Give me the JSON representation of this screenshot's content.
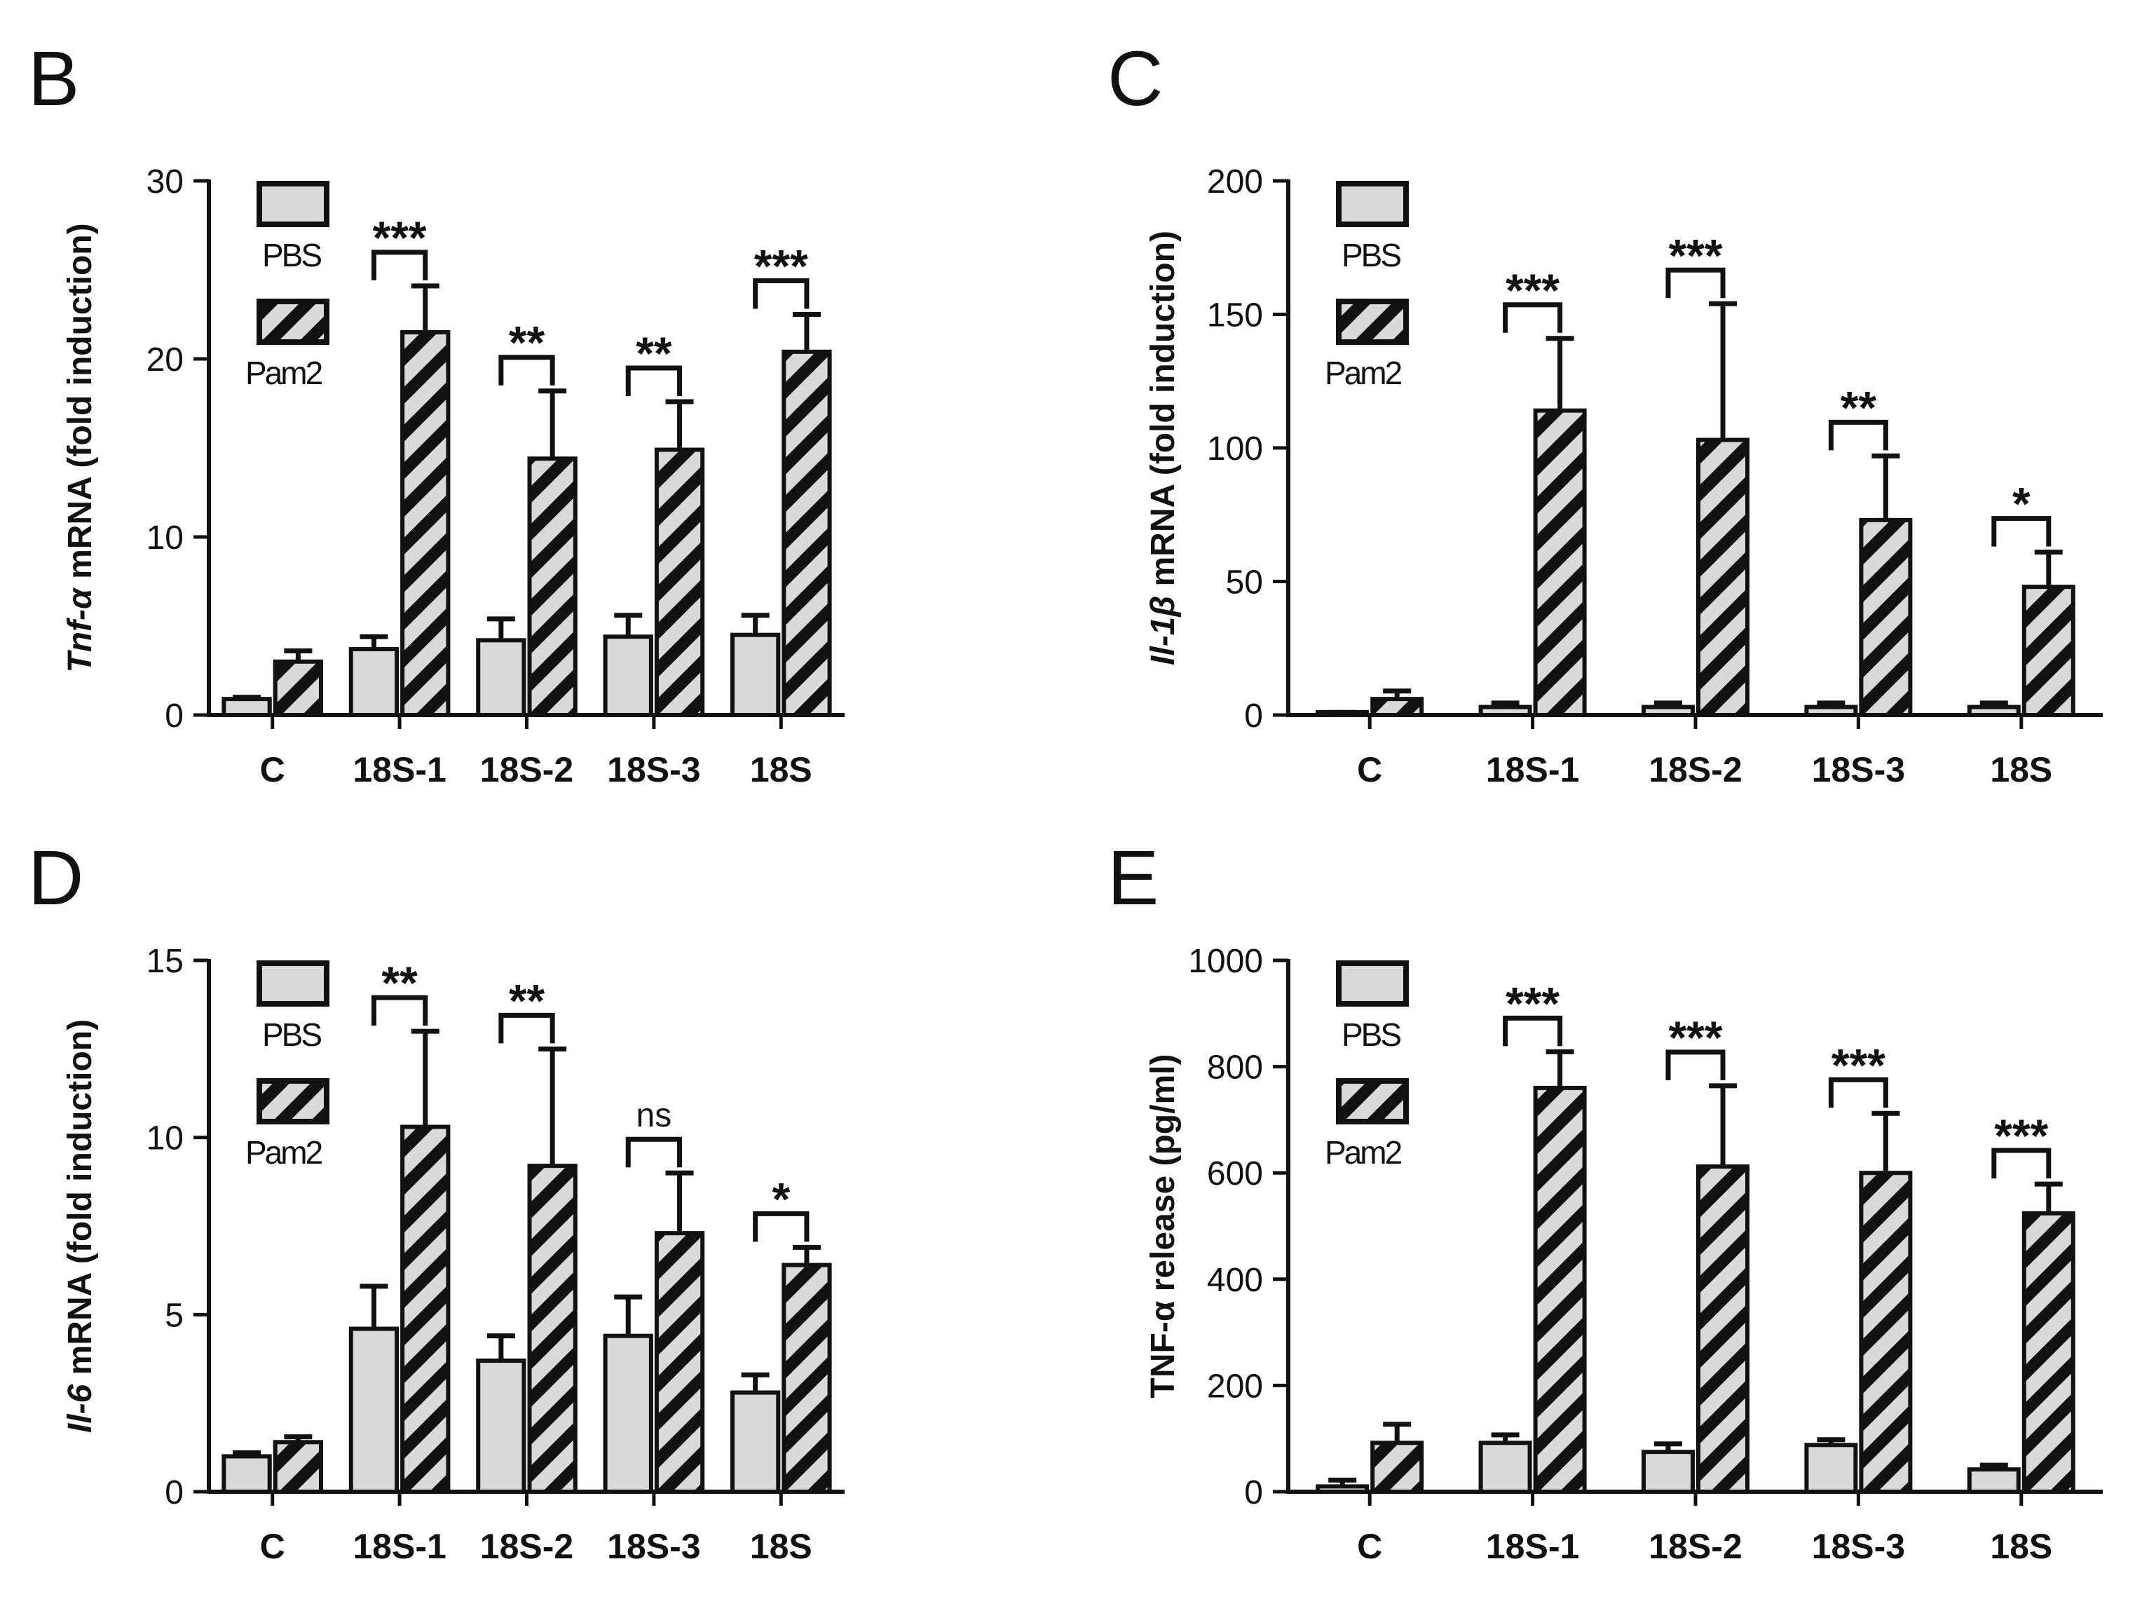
{
  "colors": {
    "bar_fill": "#d9d9d9",
    "stroke": "#111111"
  },
  "legend": {
    "items": [
      {
        "label": "PBS",
        "pattern": "solid"
      },
      {
        "label": "Pam2",
        "pattern": "hatched"
      }
    ]
  },
  "chart_data": [
    {
      "panel": "B",
      "type": "bar",
      "title": "",
      "ylabel_italic": "Tnf-α",
      "ylabel_rest": " mRNA (fold induction)",
      "xlabel": "",
      "categories": [
        "C",
        "18S-1",
        "18S-2",
        "18S-3",
        "18S"
      ],
      "ylim": [
        0,
        30
      ],
      "yticks": [
        0,
        10,
        20,
        30
      ],
      "series": [
        {
          "name": "PBS",
          "values": [
            0.9,
            3.7,
            4.2,
            4.4,
            4.5
          ],
          "errors": [
            0.1,
            0.7,
            1.2,
            1.2,
            1.1
          ]
        },
        {
          "name": "Pam2",
          "values": [
            3.0,
            21.5,
            14.4,
            14.9,
            20.4
          ],
          "errors": [
            0.6,
            2.6,
            3.8,
            2.7,
            2.1
          ]
        }
      ],
      "significance": [
        "",
        "***",
        "**",
        "**",
        "***"
      ]
    },
    {
      "panel": "C",
      "type": "bar",
      "title": "",
      "ylabel_italic": "Il-1β",
      "ylabel_rest": " mRNA (fold induction)",
      "xlabel": "",
      "categories": [
        "C",
        "18S-1",
        "18S-2",
        "18S-3",
        "18S"
      ],
      "ylim": [
        0,
        200
      ],
      "yticks": [
        0,
        50,
        100,
        150,
        200
      ],
      "series": [
        {
          "name": "PBS",
          "values": [
            0.5,
            3,
            3,
            3,
            3
          ],
          "errors": [
            0.5,
            1.5,
            1.5,
            1.5,
            1.5
          ]
        },
        {
          "name": "Pam2",
          "values": [
            6,
            114,
            103,
            73,
            48
          ],
          "errors": [
            3,
            27,
            51,
            24,
            13
          ]
        }
      ],
      "significance": [
        "",
        "***",
        "***",
        "**",
        "*"
      ]
    },
    {
      "panel": "D",
      "type": "bar",
      "title": "",
      "ylabel_italic": "Il-6",
      "ylabel_rest": " mRNA (fold induction)",
      "xlabel": "",
      "categories": [
        "C",
        "18S-1",
        "18S-2",
        "18S-3",
        "18S"
      ],
      "ylim": [
        0,
        15
      ],
      "yticks": [
        0,
        5,
        10,
        15
      ],
      "series": [
        {
          "name": "PBS",
          "values": [
            1.0,
            4.6,
            3.7,
            4.4,
            2.8
          ],
          "errors": [
            0.1,
            1.2,
            0.7,
            1.1,
            0.5
          ]
        },
        {
          "name": "Pam2",
          "values": [
            1.4,
            10.3,
            9.2,
            7.3,
            6.4
          ],
          "errors": [
            0.15,
            2.7,
            3.3,
            1.7,
            0.5
          ]
        }
      ],
      "significance": [
        "",
        "**",
        "**",
        "ns",
        "*"
      ]
    },
    {
      "panel": "E",
      "type": "bar",
      "title": "",
      "ylabel_italic": "",
      "ylabel_rest": "TNF-α release (pg/ml)",
      "xlabel": "",
      "categories": [
        "C",
        "18S-1",
        "18S-2",
        "18S-3",
        "18S"
      ],
      "ylim": [
        0,
        1000
      ],
      "yticks": [
        0,
        200,
        400,
        600,
        800,
        1000
      ],
      "series": [
        {
          "name": "PBS",
          "values": [
            10,
            92,
            75,
            88,
            42
          ],
          "errors": [
            12,
            15,
            15,
            10,
            8
          ]
        },
        {
          "name": "Pam2",
          "values": [
            92,
            760,
            612,
            600,
            524
          ],
          "errors": [
            35,
            68,
            152,
            112,
            55
          ]
        }
      ],
      "significance": [
        "",
        "***",
        "***",
        "***",
        "***"
      ]
    }
  ]
}
